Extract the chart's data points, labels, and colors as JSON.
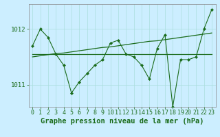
{
  "title": "Graphe pression niveau de la mer (hPa)",
  "hours": [
    0,
    1,
    2,
    3,
    4,
    5,
    6,
    7,
    8,
    9,
    10,
    11,
    12,
    13,
    14,
    15,
    16,
    17,
    18,
    19,
    20,
    21,
    22,
    23
  ],
  "s_zigzag": [
    1011.7,
    1012.0,
    1011.85,
    1011.55,
    1011.35,
    1010.85,
    1011.05,
    1011.2,
    1011.35,
    1011.45,
    1011.75,
    1011.8,
    1011.55,
    1011.5,
    1011.35,
    1011.1,
    1011.65,
    1011.9,
    1010.6,
    1011.45,
    1011.45,
    1011.5,
    1012.0,
    1012.35
  ],
  "s_flat": [
    1011.55,
    1011.55,
    1011.55,
    1011.55,
    1011.55,
    1011.55,
    1011.55,
    1011.55,
    1011.55,
    1011.55,
    1011.55,
    1011.55,
    1011.55,
    1011.55,
    1011.55,
    1011.55,
    1011.55,
    1011.55,
    1011.55,
    1011.55,
    1011.55,
    1011.55,
    1011.55,
    1011.55
  ],
  "s_trend": [
    1011.5,
    1011.52,
    1011.54,
    1011.56,
    1011.57,
    1011.59,
    1011.61,
    1011.63,
    1011.65,
    1011.67,
    1011.68,
    1011.7,
    1011.72,
    1011.74,
    1011.76,
    1011.78,
    1011.79,
    1011.81,
    1011.83,
    1011.85,
    1011.87,
    1011.89,
    1011.91,
    1011.93
  ],
  "ylim": [
    1010.6,
    1012.45
  ],
  "yticks": [
    1011,
    1012
  ],
  "bg_color": "#cceeff",
  "grid_color": "#aadddd",
  "line_color": "#1a6b1a",
  "text_color": "#1a6b1a",
  "title_fontsize": 7.5,
  "tick_fontsize": 6.5
}
